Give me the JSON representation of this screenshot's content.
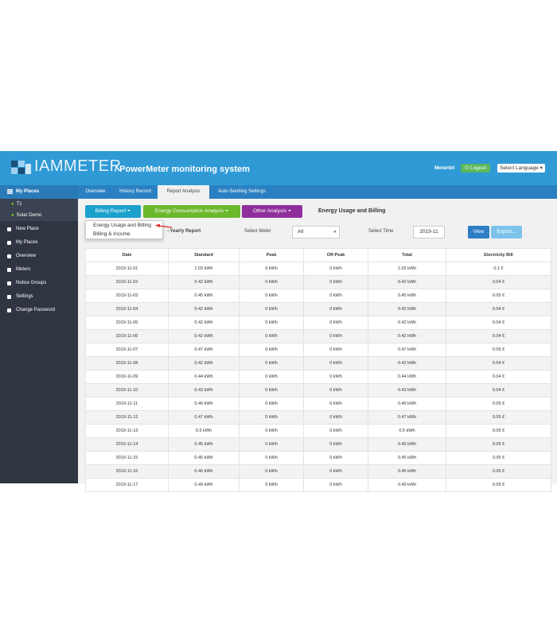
{
  "header": {
    "logo": "IAMMETER",
    "system_title": "/ PowerMeter monitoring system",
    "user": "Meterbit",
    "logout": "Logout",
    "language": "Select Language"
  },
  "sidebar": {
    "my_places": "My Places",
    "places": [
      "T1",
      "Solar Demo"
    ],
    "menu": [
      "New Place",
      "My Places",
      "Overview",
      "Meters",
      "Notice Groups",
      "Settings",
      "Change Password"
    ]
  },
  "tabs": {
    "items": [
      "Overview",
      "History Record",
      "Report Analysis",
      "Auto-Sending Settings"
    ],
    "active": 2
  },
  "toolbar": {
    "buttons": [
      "Billing Report",
      "Energy Consumption Analysis",
      "Other Analysis"
    ],
    "report_title": "Energy Usage and Billing"
  },
  "dropdown": [
    "Energy Usage and Billing",
    "Billing & Income"
  ],
  "filters": {
    "yearly": "Yearly Report",
    "meter_label": "Select Meter",
    "meter_value": "All",
    "time_label": "Select Time",
    "time_value": "2019-11",
    "view": "View",
    "export": "Export..."
  },
  "table": {
    "columns": [
      "Date",
      "Standard",
      "Peak",
      "Off-Peak",
      "Total",
      "Electricity Bill"
    ],
    "rows": [
      [
        "2019-11-01",
        "1.03 kWh",
        "0 kWh",
        "0 kWh",
        "1.03 kWh",
        "0.1 €"
      ],
      [
        "2019-11-02",
        "0.42 kWh",
        "0 kWh",
        "0 kWh",
        "0.42 kWh",
        "0.04 €"
      ],
      [
        "2019-11-03",
        "0.45 kWh",
        "0 kWh",
        "0 kWh",
        "0.45 kWh",
        "0.05 €"
      ],
      [
        "2019-11-04",
        "0.42 kWh",
        "0 kWh",
        "0 kWh",
        "0.42 kWh",
        "0.04 €"
      ],
      [
        "2019-11-05",
        "0.42 kWh",
        "0 kWh",
        "0 kWh",
        "0.42 kWh",
        "0.04 €"
      ],
      [
        "2019-11-06",
        "0.42 kWh",
        "0 kWh",
        "0 kWh",
        "0.42 kWh",
        "0.04 €"
      ],
      [
        "2019-11-07",
        "0.47 kWh",
        "0 kWh",
        "0 kWh",
        "0.47 kWh",
        "0.05 €"
      ],
      [
        "2019-11-08",
        "0.42 kWh",
        "0 kWh",
        "0 kWh",
        "0.42 kWh",
        "0.04 €"
      ],
      [
        "2019-11-09",
        "0.44 kWh",
        "0 kWh",
        "0 kWh",
        "0.44 kWh",
        "0.04 €"
      ],
      [
        "2019-11-10",
        "0.43 kWh",
        "0 kWh",
        "0 kWh",
        "0.43 kWh",
        "0.04 €"
      ],
      [
        "2019-11-11",
        "0.46 kWh",
        "0 kWh",
        "0 kWh",
        "0.46 kWh",
        "0.05 €"
      ],
      [
        "2019-11-12",
        "0.47 kWh",
        "0 kWh",
        "0 kWh",
        "0.47 kWh",
        "0.05 €"
      ],
      [
        "2019-11-13",
        "0.5 kWh",
        "0 kWh",
        "0 kWh",
        "0.5 kWh",
        "0.05 €"
      ],
      [
        "2019-11-14",
        "0.45 kWh",
        "0 kWh",
        "0 kWh",
        "0.45 kWh",
        "0.05 €"
      ],
      [
        "2019-11-15",
        "0.45 kWh",
        "0 kWh",
        "0 kWh",
        "0.45 kWh",
        "0.05 €"
      ],
      [
        "2019-11-16",
        "0.46 kWh",
        "0 kWh",
        "0 kWh",
        "0.46 kWh",
        "0.05 €"
      ],
      [
        "2019-11-17",
        "0.49 kWh",
        "0 kWh",
        "0 kWh",
        "0.49 kWh",
        "0.05 €"
      ]
    ]
  }
}
